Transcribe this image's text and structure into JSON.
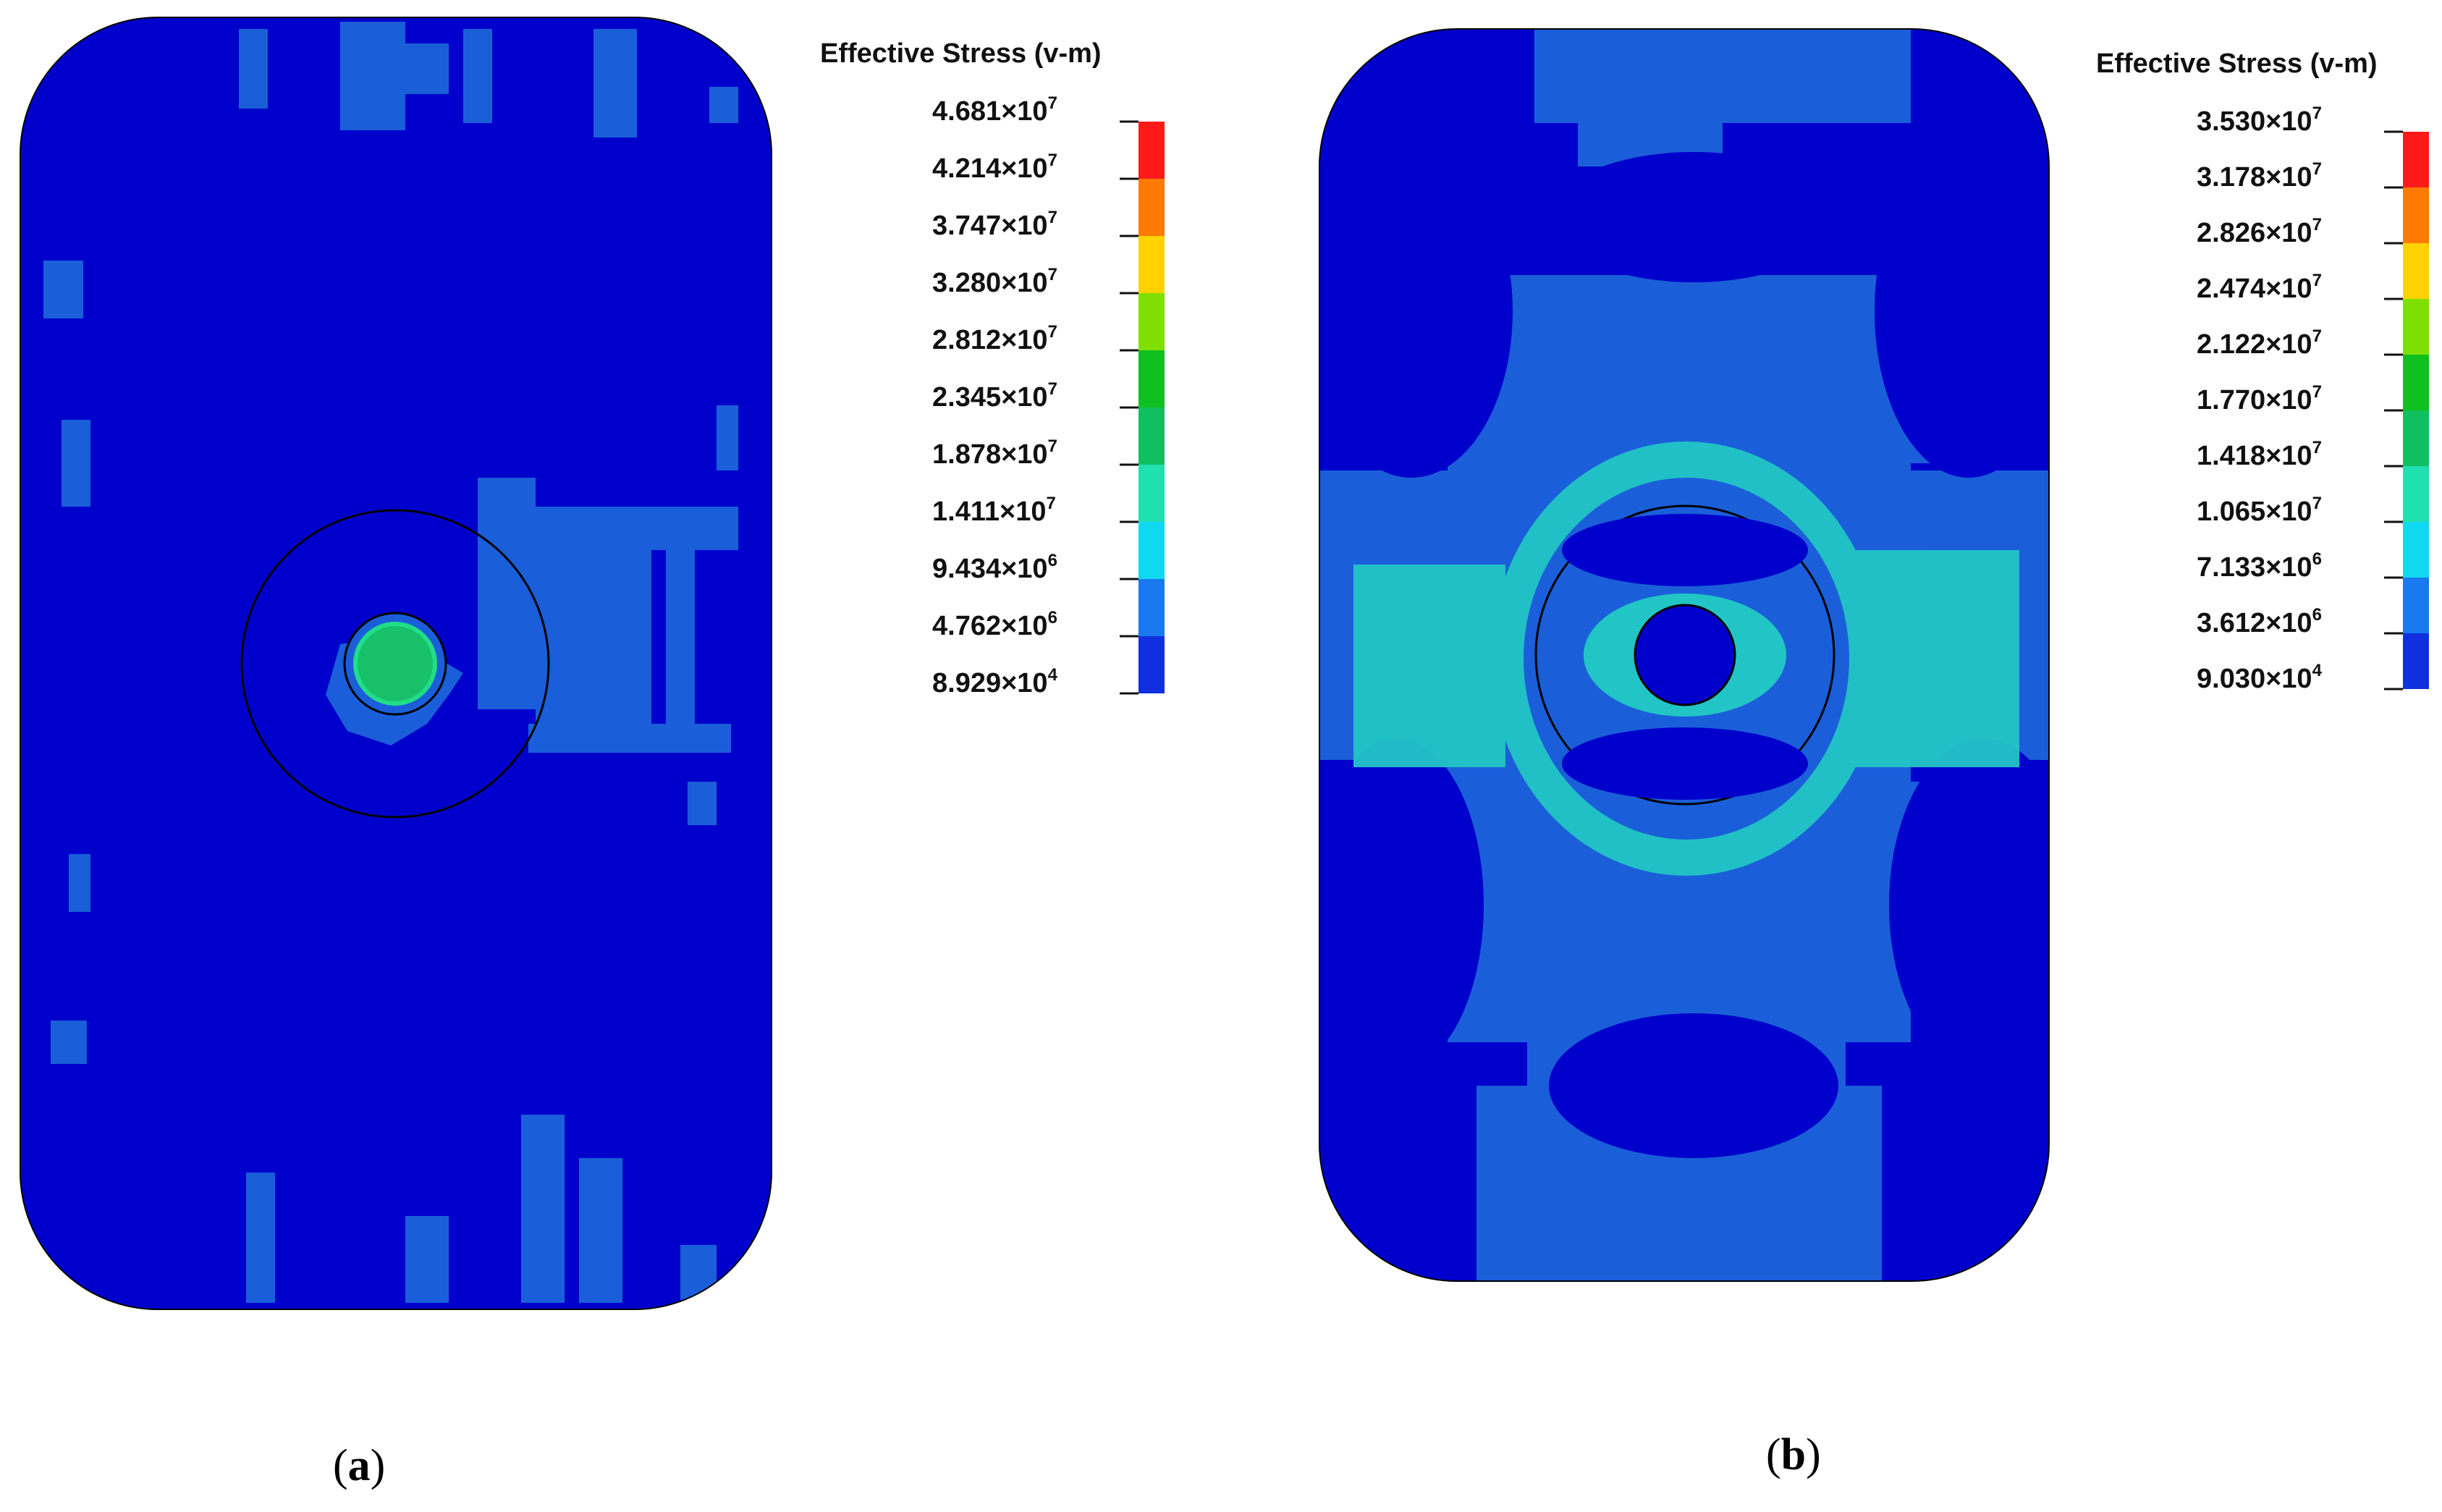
{
  "colors": {
    "background": "#0000cc",
    "band_1": "#1a5fd9",
    "band_2": "#22c5c5",
    "band_3": "#18c06a",
    "outline": "#000000"
  },
  "panel_a": {
    "caption_label": "a",
    "legend_title": "Effective Stress (v-m)",
    "legend_ticks": [
      {
        "mantissa": "4.681",
        "exponent": "7"
      },
      {
        "mantissa": "4.214",
        "exponent": "7"
      },
      {
        "mantissa": "3.747",
        "exponent": "7"
      },
      {
        "mantissa": "3.280",
        "exponent": "7"
      },
      {
        "mantissa": "2.812",
        "exponent": "7"
      },
      {
        "mantissa": "2.345",
        "exponent": "7"
      },
      {
        "mantissa": "1.878",
        "exponent": "7"
      },
      {
        "mantissa": "1.411",
        "exponent": "7"
      },
      {
        "mantissa": "9.434",
        "exponent": "6"
      },
      {
        "mantissa": "4.762",
        "exponent": "6"
      },
      {
        "mantissa": "8.929",
        "exponent": "4"
      }
    ],
    "legend_colors": [
      "#ff1a1a",
      "#ff7a00",
      "#ffd200",
      "#7fe000",
      "#10c020",
      "#10c060",
      "#20e0b0",
      "#10d8f0",
      "#1a78f0",
      "#1030e0"
    ]
  },
  "panel_b": {
    "caption_label": "b",
    "legend_title": "Effective Stress (v-m)",
    "legend_ticks": [
      {
        "mantissa": "3.530",
        "exponent": "7"
      },
      {
        "mantissa": "3.178",
        "exponent": "7"
      },
      {
        "mantissa": "2.826",
        "exponent": "7"
      },
      {
        "mantissa": "2.474",
        "exponent": "7"
      },
      {
        "mantissa": "2.122",
        "exponent": "7"
      },
      {
        "mantissa": "1.770",
        "exponent": "7"
      },
      {
        "mantissa": "1.418",
        "exponent": "7"
      },
      {
        "mantissa": "1.065",
        "exponent": "7"
      },
      {
        "mantissa": "7.133",
        "exponent": "6"
      },
      {
        "mantissa": "3.612",
        "exponent": "6"
      },
      {
        "mantissa": "9.030",
        "exponent": "4"
      }
    ],
    "legend_colors": [
      "#ff1a1a",
      "#ff7a00",
      "#ffd200",
      "#7fe000",
      "#10c020",
      "#10c060",
      "#20e0b0",
      "#10d8f0",
      "#1a78f0",
      "#1030e0"
    ]
  }
}
